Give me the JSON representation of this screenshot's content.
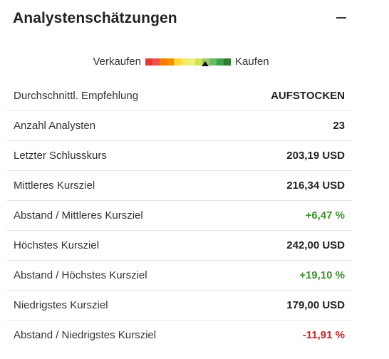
{
  "header": {
    "title": "Analystenschätzungen"
  },
  "rating": {
    "sell_label": "Verkaufen",
    "buy_label": "Kaufen",
    "scale_colors": [
      "#e53935",
      "#ef5350",
      "#f57c00",
      "#fb8c00",
      "#fdd835",
      "#f4e96a",
      "#eef27a",
      "#d4e157",
      "#9ccc65",
      "#66bb6a",
      "#43a047",
      "#2e7d32"
    ],
    "marker_position_fraction": 0.7
  },
  "rows": [
    {
      "label": "Durchschnittl. Empfehlung",
      "value": "AUFSTOCKEN",
      "tone": "neutral"
    },
    {
      "label": "Anzahl Analysten",
      "value": "23",
      "tone": "neutral"
    },
    {
      "label": "Letzter Schlusskurs",
      "value": "203,19 USD",
      "tone": "neutral"
    },
    {
      "label": "Mittleres Kursziel",
      "value": "216,34 USD",
      "tone": "neutral"
    },
    {
      "label": "Abstand / Mittleres Kursziel",
      "value": "+6,47 %",
      "tone": "pos"
    },
    {
      "label": "Höchstes Kursziel",
      "value": "242,00 USD",
      "tone": "neutral"
    },
    {
      "label": "Abstand / Höchstes Kursziel",
      "value": "+19,10 %",
      "tone": "pos"
    },
    {
      "label": "Niedrigstes Kursziel",
      "value": "179,00 USD",
      "tone": "neutral"
    },
    {
      "label": "Abstand / Niedrigstes Kursziel",
      "value": "-11,91 %",
      "tone": "neg"
    }
  ]
}
